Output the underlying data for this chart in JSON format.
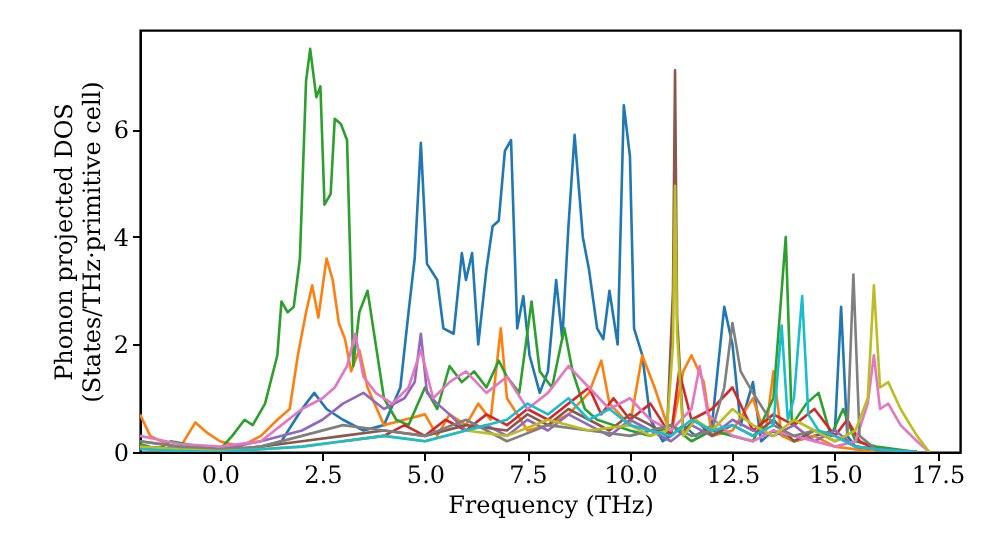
{
  "chart_data": {
    "type": "line",
    "xlabel": "Frequency (THz)",
    "ylabel": "Phonon projected DOS\n(States/THz·primitive cell)",
    "xlim": [
      -1.95,
      18.05
    ],
    "ylim": [
      0,
      7.85
    ],
    "xticks": [
      {
        "value": 0,
        "label": "0.0"
      },
      {
        "value": 2.5,
        "label": "2.5"
      },
      {
        "value": 5,
        "label": "5.0"
      },
      {
        "value": 7.5,
        "label": "7.5"
      },
      {
        "value": 10,
        "label": "10.0"
      },
      {
        "value": 12.5,
        "label": "12.5"
      },
      {
        "value": 15,
        "label": "15.0"
      },
      {
        "value": 17.5,
        "label": "17.5"
      }
    ],
    "yticks": [
      0,
      2,
      4,
      6
    ],
    "grid": false,
    "series": [
      {
        "color": "#1f77b4",
        "x": [
          -1.95,
          -1,
          0,
          1,
          1.5,
          2,
          2.3,
          2.6,
          3,
          3.5,
          4,
          4.4,
          4.6,
          4.75,
          4.9,
          5.05,
          5.3,
          5.45,
          5.7,
          5.9,
          6.0,
          6.15,
          6.3,
          6.5,
          6.65,
          6.8,
          6.95,
          7.1,
          7.25,
          7.4,
          7.55,
          7.8,
          8.0,
          8.2,
          8.35,
          8.5,
          8.65,
          8.85,
          9.0,
          9.2,
          9.35,
          9.5,
          9.7,
          9.85,
          10.0,
          10.1,
          10.3,
          10.5,
          10.8,
          11,
          11.3,
          11.6,
          12.0,
          12.3,
          12.5,
          12.7,
          13.0,
          13.2,
          13.5,
          14,
          14.5,
          15.0,
          15.15,
          15.3,
          15.5,
          16,
          17
        ],
        "values": [
          0.1,
          0.05,
          0,
          0.1,
          0.2,
          0.8,
          1.1,
          0.8,
          0.6,
          0.4,
          0.5,
          1.2,
          2.6,
          3.6,
          5.75,
          3.5,
          3.2,
          2.3,
          2.2,
          3.7,
          3.2,
          3.7,
          2.0,
          3.4,
          4.2,
          4.3,
          5.6,
          5.8,
          2.3,
          2.9,
          1.8,
          1.1,
          1.5,
          3.2,
          2.1,
          4.2,
          5.9,
          4.0,
          3.4,
          2.3,
          2.1,
          3.0,
          2.0,
          6.45,
          5.5,
          2.3,
          1.8,
          0.6,
          0.2,
          0.3,
          0.5,
          0.3,
          0.5,
          2.7,
          2.0,
          0.5,
          1.3,
          0.2,
          0.4,
          0.2,
          0.3,
          0.4,
          2.7,
          0.3,
          0.1,
          0.05,
          0
        ]
      },
      {
        "color": "#ff7f0e",
        "x": [
          -1.95,
          -1.7,
          -1.3,
          -1.0,
          -0.6,
          -0.3,
          0,
          0.5,
          1.0,
          1.4,
          1.7,
          1.9,
          2.1,
          2.25,
          2.4,
          2.6,
          2.75,
          2.9,
          3.05,
          3.2,
          3.4,
          3.6,
          4.0,
          4.5,
          5.0,
          5.3,
          5.6,
          6.0,
          6.3,
          6.6,
          6.85,
          7.0,
          7.5,
          8.0,
          8.5,
          9.0,
          9.3,
          9.5,
          10.0,
          10.3,
          10.6,
          11.0,
          11.3,
          11.5,
          11.8,
          12.0,
          12.5,
          13.0,
          13.3,
          13.5,
          13.7,
          14.0,
          14.5,
          15,
          16
        ],
        "values": [
          0.7,
          0.3,
          0.15,
          0.05,
          0.55,
          0.35,
          0.2,
          0.1,
          0.3,
          0.6,
          0.8,
          1.8,
          2.6,
          3.1,
          2.5,
          3.6,
          3.2,
          2.4,
          2.1,
          1.5,
          1.9,
          1.2,
          0.5,
          0.6,
          0.7,
          0.3,
          0.7,
          0.5,
          0.9,
          0.6,
          2.3,
          1.0,
          0.4,
          0.5,
          0.7,
          1.1,
          1.7,
          0.9,
          0.5,
          1.8,
          1.2,
          0.3,
          1.5,
          1.8,
          1.3,
          0.3,
          0.4,
          1.0,
          0.3,
          1.5,
          0.3,
          0.2,
          0.3,
          0.1,
          0
        ]
      },
      {
        "color": "#2ca02c",
        "x": [
          -1.95,
          -1.5,
          -1.2,
          -0.5,
          0,
          0.3,
          0.6,
          0.8,
          1.1,
          1.4,
          1.5,
          1.65,
          1.8,
          1.95,
          2.1,
          2.2,
          2.35,
          2.45,
          2.55,
          2.7,
          2.8,
          2.95,
          3.1,
          3.25,
          3.4,
          3.6,
          3.8,
          4.0,
          4.3,
          4.6,
          5.0,
          5.3,
          5.6,
          5.9,
          6.2,
          6.5,
          6.8,
          7.0,
          7.3,
          7.6,
          7.8,
          8.1,
          8.4,
          8.6,
          8.9,
          9.2,
          9.6,
          10.0,
          10.5,
          11.0,
          11.5,
          12.0,
          12.5,
          13.0,
          13.5,
          13.8,
          13.95,
          14.3,
          14.6,
          14.9,
          15.2,
          15.5,
          16,
          17
        ],
        "values": [
          0.15,
          0.05,
          0.2,
          0.1,
          0.05,
          0.3,
          0.6,
          0.5,
          0.9,
          1.8,
          2.8,
          2.6,
          2.7,
          3.6,
          6.9,
          7.5,
          6.6,
          6.8,
          4.6,
          4.8,
          6.2,
          6.1,
          5.8,
          1.6,
          2.6,
          3.0,
          2.0,
          1.0,
          0.6,
          0.5,
          1.2,
          0.8,
          1.6,
          1.3,
          1.5,
          1.2,
          1.7,
          1.4,
          1.1,
          2.8,
          1.5,
          1.2,
          2.3,
          1.5,
          0.8,
          0.6,
          0.5,
          0.4,
          0.3,
          0.5,
          0.2,
          0.4,
          0.3,
          0.2,
          1.0,
          4.0,
          0.5,
          0.9,
          1.1,
          0.3,
          0.8,
          0.2,
          0.1,
          0
        ]
      },
      {
        "color": "#d62728",
        "x": [
          3,
          4,
          4.5,
          5,
          5.5,
          6,
          6.5,
          7,
          7.5,
          8,
          8.5,
          9,
          9.3,
          9.6,
          10,
          10.5,
          11,
          11.2,
          11.5,
          12,
          12.5,
          13,
          13.5,
          14,
          14.5,
          15,
          15.3,
          15.6,
          16,
          17
        ],
        "values": [
          0.2,
          0.3,
          0.5,
          0.3,
          0.6,
          0.4,
          0.7,
          0.5,
          0.8,
          0.6,
          0.9,
          1.2,
          0.7,
          1.0,
          0.6,
          0.9,
          0.3,
          1.5,
          0.6,
          0.8,
          1.2,
          0.4,
          0.7,
          0.5,
          0.8,
          0.3,
          0.6,
          0.2,
          0.05,
          0
        ]
      },
      {
        "color": "#9467bd",
        "x": [
          -1.95,
          -1,
          0,
          1,
          2,
          2.5,
          3,
          3.5,
          4,
          4.5,
          4.75,
          4.9,
          5.05,
          5.3,
          5.6,
          6,
          6.5,
          7,
          7.5,
          8,
          8.5,
          9,
          9.5,
          10,
          10.5,
          11,
          11.5,
          12,
          12.5,
          13,
          13.5,
          14,
          14.5,
          15,
          15.5,
          16,
          17
        ],
        "values": [
          0.2,
          0.1,
          0.05,
          0.2,
          0.4,
          0.6,
          0.9,
          1.1,
          0.8,
          1.0,
          1.3,
          2.2,
          1.1,
          0.9,
          0.7,
          0.4,
          0.5,
          0.3,
          0.6,
          0.4,
          0.7,
          0.5,
          0.3,
          0.6,
          0.4,
          0.2,
          0.5,
          0.3,
          0.6,
          0.4,
          0.3,
          0.5,
          0.2,
          0.4,
          0.1,
          0.05,
          0
        ]
      },
      {
        "color": "#8c564b",
        "x": [
          -1.95,
          -1,
          0,
          1,
          2,
          3,
          4,
          5,
          6,
          7,
          7.5,
          8,
          8.5,
          9,
          9.5,
          10,
          10.5,
          10.9,
          11.05,
          11.1,
          11.15,
          11.3,
          11.6,
          12,
          12.5,
          13,
          13.5,
          14,
          14.5,
          15,
          15.5,
          16,
          17
        ],
        "values": [
          0.1,
          0.05,
          0.02,
          0.1,
          0.2,
          0.3,
          0.4,
          0.3,
          0.5,
          0.4,
          0.7,
          0.5,
          0.8,
          0.6,
          0.4,
          0.7,
          0.5,
          0.3,
          3.0,
          7.1,
          2.5,
          0.4,
          0.6,
          0.3,
          0.5,
          0.3,
          0.6,
          0.2,
          0.4,
          0.3,
          0.1,
          0.05,
          0
        ]
      },
      {
        "color": "#e377c2",
        "x": [
          -1.95,
          -1,
          0,
          1,
          1.5,
          2,
          2.5,
          2.8,
          3.1,
          3.3,
          3.5,
          3.8,
          4.2,
          4.6,
          4.9,
          5.2,
          5.6,
          6,
          6.5,
          7,
          7.5,
          8,
          8.5,
          9,
          9.5,
          10,
          10.5,
          11,
          11.5,
          11.7,
          11.9,
          12.2,
          12.5,
          13,
          13.5,
          14,
          14.5,
          15,
          15.5,
          15.8,
          15.95,
          16.1,
          16.3,
          16.6,
          17,
          17.3
        ],
        "values": [
          0.3,
          0.15,
          0.1,
          0.2,
          0.5,
          0.8,
          1.0,
          1.2,
          1.6,
          2.2,
          1.4,
          1.1,
          0.9,
          1.2,
          1.9,
          1.0,
          1.3,
          1.5,
          1.1,
          1.4,
          0.8,
          1.1,
          1.6,
          1.2,
          0.8,
          1.0,
          0.6,
          0.4,
          0.8,
          1.6,
          0.7,
          0.5,
          0.3,
          0.2,
          0.4,
          0.3,
          0.2,
          0.1,
          0.2,
          0.9,
          1.8,
          0.8,
          0.9,
          0.5,
          0.2,
          0
        ]
      },
      {
        "color": "#7f7f7f",
        "x": [
          -1.95,
          -1,
          0,
          1,
          2,
          3,
          4,
          5,
          6,
          7,
          8,
          9,
          10,
          11,
          11.5,
          12,
          12.3,
          12.5,
          12.7,
          13,
          13.5,
          14,
          14.5,
          15,
          15.3,
          15.45,
          15.6,
          16,
          17
        ],
        "values": [
          0.2,
          0.1,
          0.05,
          0.1,
          0.3,
          0.5,
          0.4,
          0.3,
          0.6,
          0.2,
          0.5,
          0.4,
          0.3,
          0.5,
          0.3,
          0.4,
          1.2,
          2.4,
          1.5,
          1.1,
          0.5,
          0.3,
          0.4,
          0.2,
          0.3,
          3.3,
          0.3,
          0.05,
          0
        ]
      },
      {
        "color": "#bcbd22",
        "x": [
          -1.95,
          -1,
          0,
          1,
          2,
          3,
          4,
          5,
          6,
          7,
          8,
          9,
          10,
          10.5,
          10.9,
          11.05,
          11.1,
          11.15,
          11.3,
          11.6,
          12,
          12.5,
          13,
          13.5,
          14,
          14.5,
          15,
          15.5,
          15.8,
          15.95,
          16.1,
          16.3,
          16.6,
          17,
          17.3
        ],
        "values": [
          0.1,
          0.05,
          0.02,
          0.05,
          0.1,
          0.2,
          0.3,
          0.2,
          0.4,
          0.3,
          0.6,
          0.4,
          0.5,
          0.3,
          0.4,
          2.0,
          4.95,
          2.2,
          0.3,
          0.6,
          0.4,
          0.8,
          0.5,
          0.3,
          0.6,
          0.4,
          0.2,
          0.4,
          1.0,
          3.1,
          1.2,
          1.3,
          0.8,
          0.3,
          0
        ]
      },
      {
        "color": "#17becf",
        "x": [
          -1.95,
          -1,
          0,
          1,
          2,
          3,
          4,
          5,
          6,
          7,
          7.5,
          8,
          8.5,
          9,
          9.5,
          10,
          10.5,
          11,
          11.5,
          12,
          12.5,
          13,
          13.5,
          13.7,
          13.85,
          14.0,
          14.2,
          14.35,
          14.6,
          15,
          15.5,
          16,
          17
        ],
        "values": [
          0.05,
          0.02,
          0.0,
          0.05,
          0.1,
          0.2,
          0.3,
          0.2,
          0.4,
          0.6,
          0.9,
          0.7,
          1.0,
          0.6,
          0.8,
          0.5,
          0.4,
          0.3,
          0.6,
          0.4,
          0.5,
          0.3,
          0.5,
          2.35,
          0.6,
          1.0,
          2.9,
          0.7,
          0.4,
          0.3,
          0.1,
          0.05,
          0
        ]
      }
    ]
  }
}
